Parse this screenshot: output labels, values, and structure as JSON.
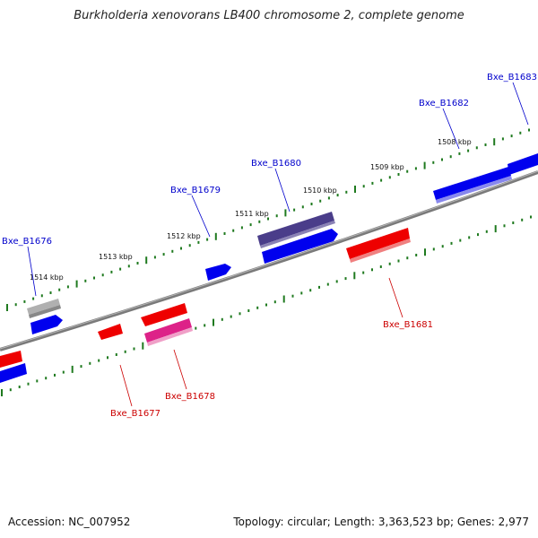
{
  "title": "Burkholderia xenovorans LB400 chromosome 2, complete genome",
  "footer": {
    "accession": "Accession: NC_007952",
    "stats": "Topology: circular; Length: 3,363,523 bp; Genes: 2,977"
  },
  "colors": {
    "backbone": "#888888",
    "ticks": "#1f7a1f",
    "forward_label": "#0000cc",
    "reverse_label": "#cc0000",
    "gene_blue": "#0000ee",
    "gene_red": "#ee0000",
    "gene_purple": "#4a3d8a",
    "gene_pink": "#dd2288",
    "gene_grey": "#b0b0b0"
  },
  "kbp_labels": [
    "1514 kbp",
    "1513 kbp",
    "1512 kbp",
    "1511 kbp",
    "1510 kbp",
    "1509 kbp",
    "1508 kbp"
  ],
  "gene_labels": {
    "forward": [
      "Bxe_B1676",
      "Bxe_B1679",
      "Bxe_B1680",
      "Bxe_B1682",
      "Bxe_B1683"
    ],
    "reverse": [
      "Bxe_B1677",
      "Bxe_B1678",
      "Bxe_B1681"
    ]
  }
}
